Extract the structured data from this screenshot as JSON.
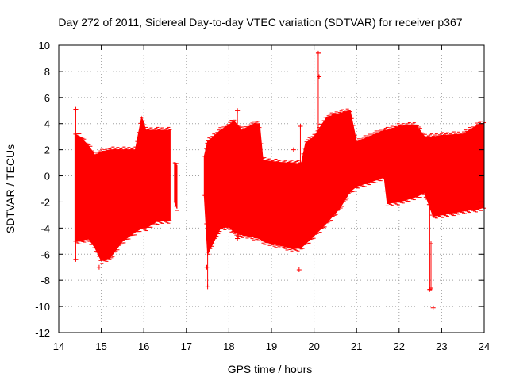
{
  "chart_data": {
    "type": "scatter",
    "style": "errorbars",
    "title": "Day 272 of 2011, Sidereal Day-to-day VTEC variation (SDTVAR) for receiver p367",
    "xlabel": "GPS time / hours",
    "ylabel": "SDTVAR / TECUs",
    "xlim": [
      14,
      24
    ],
    "ylim": [
      -12,
      10
    ],
    "xticks": [
      14,
      15,
      16,
      17,
      18,
      19,
      20,
      21,
      22,
      23,
      24
    ],
    "yticks": [
      -12,
      -10,
      -8,
      -6,
      -4,
      -2,
      0,
      2,
      4,
      6,
      8,
      10
    ],
    "grid": true,
    "color": "#ff0000",
    "envelope": {
      "segments": [
        {
          "x": [
            14.38,
            14.5,
            14.7,
            14.85,
            15.0,
            15.2,
            15.5,
            15.8,
            15.95,
            16.05,
            16.3,
            16.62
          ],
          "upper": [
            3.2,
            3.0,
            2.3,
            1.6,
            1.8,
            2.0,
            2.0,
            2.0,
            4.5,
            3.5,
            3.5,
            3.5
          ],
          "lower": [
            -5.0,
            -5.0,
            -4.8,
            -5.5,
            -6.5,
            -6.3,
            -5.0,
            -4.3,
            -4.0,
            -4.0,
            -3.5,
            -3.4
          ]
        },
        {
          "x": [
            16.72,
            16.78
          ],
          "upper": [
            1.0,
            0.8
          ],
          "lower": [
            -2.0,
            -2.5
          ]
        },
        {
          "x": [
            17.42,
            17.5,
            17.8,
            18.0,
            18.12,
            18.3,
            18.6,
            18.72,
            18.8,
            19.0,
            19.3,
            19.5,
            19.7,
            19.8,
            20.0,
            20.3,
            20.6,
            20.85,
            21.0,
            21.3,
            21.65,
            21.72,
            22.0,
            22.4,
            22.6,
            22.8,
            23.0,
            23.5,
            23.9,
            24.0
          ],
          "upper": [
            1.5,
            2.6,
            3.5,
            3.9,
            4.2,
            3.5,
            4.0,
            4.0,
            1.2,
            1.1,
            1.0,
            1.0,
            0.9,
            2.5,
            3.0,
            4.5,
            4.8,
            5.0,
            2.6,
            3.0,
            3.5,
            3.5,
            3.8,
            3.9,
            3.0,
            3.0,
            3.1,
            3.2,
            4.0,
            4.0
          ],
          "lower": [
            -1.5,
            -6.0,
            -4.0,
            -3.9,
            -4.3,
            -4.5,
            -4.7,
            -4.8,
            -5.0,
            -5.2,
            -5.4,
            -5.6,
            -5.5,
            -5.2,
            -4.6,
            -3.6,
            -2.5,
            -1.2,
            -0.8,
            -0.5,
            -0.1,
            -2.1,
            -2.0,
            -1.6,
            -1.3,
            -3.1,
            -3.0,
            -2.7,
            -2.5,
            -2.4
          ]
        }
      ]
    },
    "outliers": [
      {
        "x": 14.4,
        "y_low": -6.4,
        "y_high": 5.1
      },
      {
        "x": 14.9,
        "y": -5.2
      },
      {
        "x": 14.95,
        "y": -7.0
      },
      {
        "x": 17.5,
        "y_low": -8.5,
        "y_high": 2.5
      },
      {
        "x": 17.48,
        "y": -7.0
      },
      {
        "x": 18.2,
        "y_low": -4.8,
        "y_high": 5.0
      },
      {
        "x": 18.22,
        "y": -4.6
      },
      {
        "x": 19.52,
        "y": 2.0
      },
      {
        "x": 19.68,
        "y_low": 1.0,
        "y_high": 3.8
      },
      {
        "x": 19.65,
        "y": -7.2
      },
      {
        "x": 20.1,
        "y_low": 2.0,
        "y_high": 9.4
      },
      {
        "x": 20.12,
        "y": 7.6
      },
      {
        "x": 22.72,
        "y_low": -8.7,
        "y_high": -2.3
      },
      {
        "x": 22.75,
        "y_low": -8.6,
        "y_high": -5.2
      },
      {
        "x": 22.8,
        "y": -10.1
      }
    ]
  }
}
